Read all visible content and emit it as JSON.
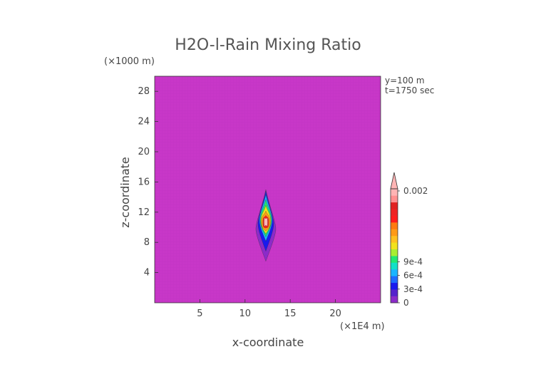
{
  "chart_data": {
    "type": "heatmap",
    "title": "H2O-l-Rain Mixing Ratio",
    "xlabel": "x-coordinate",
    "ylabel": "z-coordinate",
    "x_unit": "(×1E4 m)",
    "y_unit": "(×1000 m)",
    "annotations": [
      "y=100 m",
      "t=1750 sec"
    ],
    "xlim": [
      0,
      25
    ],
    "ylim": [
      0,
      30
    ],
    "x_ticks": [
      5,
      10,
      15,
      20
    ],
    "y_ticks": [
      4,
      8,
      12,
      16,
      20,
      24,
      28
    ],
    "background_value": 0,
    "background_color": "#c837c8",
    "colorbar": {
      "max": 0.002,
      "tick_labels": [
        {
          "value": 0,
          "label": "0"
        },
        {
          "value": 0.0003,
          "label": "3e-4"
        },
        {
          "value": 0.0006,
          "label": "6e-4"
        },
        {
          "value": 0.0009,
          "label": "9e-4"
        },
        {
          "value": 0.002,
          "label": "0.002"
        }
      ],
      "colors": [
        "#8b2bc9",
        "#5522cc",
        "#1a1aee",
        "#1e6cff",
        "#19b5ff",
        "#12e0c8",
        "#22e872",
        "#a8ee30",
        "#f2e21c",
        "#ffc020",
        "#ff9a18",
        "#ff7a10",
        "#ff1c1c",
        "#ee2222",
        "#e02222",
        "#ff9090",
        "#ffb4b4"
      ],
      "extend_top": true
    },
    "feature": {
      "description_hidden": true,
      "x_center": 12.3,
      "z_bottom": 5.5,
      "z_top": 15
    }
  }
}
